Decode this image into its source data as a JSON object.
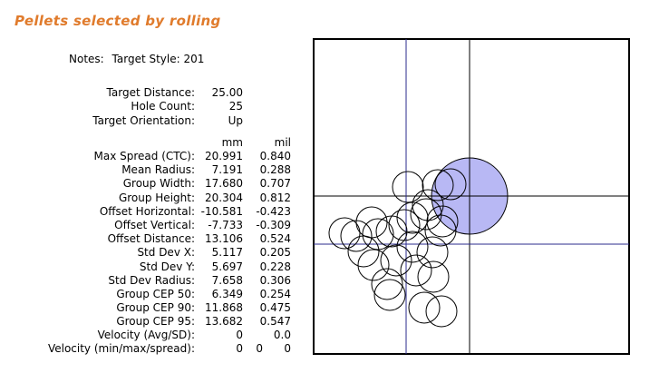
{
  "title": "Pellets selected by rolling",
  "notes": {
    "label": "Notes:",
    "value": "Target Style: 201"
  },
  "target": [
    {
      "label": "Target Distance:",
      "value": "25.00"
    },
    {
      "label": "Hole Count:",
      "value": "25"
    },
    {
      "label": "Target Orientation:",
      "value": "Up"
    }
  ],
  "units": {
    "mm": "mm",
    "mil": "mil"
  },
  "stats": [
    {
      "label": "Max Spread (CTC):",
      "mm": "20.991",
      "mil": "0.840"
    },
    {
      "label": "Mean Radius:",
      "mm": "7.191",
      "mil": "0.288"
    },
    {
      "label": "Group Width:",
      "mm": "17.680",
      "mil": "0.707"
    },
    {
      "label": "Group Height:",
      "mm": "20.304",
      "mil": "0.812"
    },
    {
      "label": "Offset Horizontal:",
      "mm": "-10.581",
      "mil": "-0.423"
    },
    {
      "label": "Offset Vertical:",
      "mm": "-7.733",
      "mil": "-0.309"
    },
    {
      "label": "Offset Distance:",
      "mm": "13.106",
      "mil": "0.524"
    },
    {
      "label": "Std Dev X:",
      "mm": "5.117",
      "mil": "0.205"
    },
    {
      "label": "Std Dev Y:",
      "mm": "5.697",
      "mil": "0.228"
    },
    {
      "label": "Std Dev Radius:",
      "mm": "7.658",
      "mil": "0.306"
    },
    {
      "label": "Group CEP 50:",
      "mm": "6.349",
      "mil": "0.254"
    },
    {
      "label": "Group CEP 90:",
      "mm": "11.868",
      "mil": "0.475"
    },
    {
      "label": "Group CEP 95:",
      "mm": "13.682",
      "mil": "0.547"
    }
  ],
  "velocity_avg": {
    "label": "Velocity (Avg/SD):",
    "avg": "0",
    "sd": "0.0"
  },
  "velocity_mms": {
    "label": "Velocity (min/max/spread):",
    "min": "0",
    "max": "0",
    "spread": "0"
  },
  "colors": {
    "title": "#e07b2c",
    "crosshair": "#2b2b8c",
    "bull": "#b8b8f4",
    "axis": "#000000"
  }
}
